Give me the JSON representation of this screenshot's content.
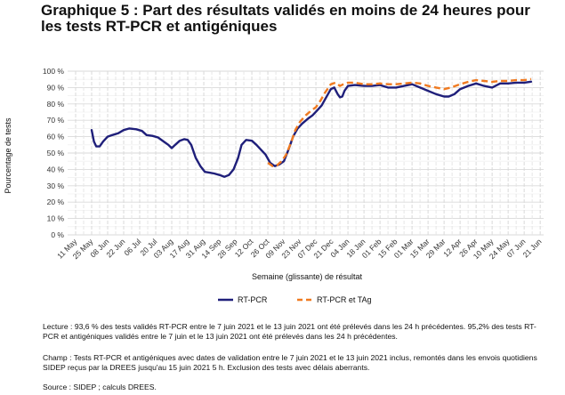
{
  "chart_data": {
    "type": "line",
    "title": "Graphique 5 : Part des résultats validés en moins de 24 heures pour les tests RT-PCR et antigéniques",
    "xlabel": "Semaine (glissante) de résultat",
    "ylabel": "Pourcentage de tests",
    "ylim": [
      0,
      100
    ],
    "y_ticks": [
      0,
      10,
      20,
      30,
      40,
      50,
      60,
      70,
      80,
      90,
      100
    ],
    "y_tick_labels": [
      "0 %",
      "10 %",
      "20 %",
      "30 %",
      "40 %",
      "50 %",
      "60 %",
      "70 %",
      "80 %",
      "90 %",
      "100 %"
    ],
    "x_ticks": [
      "2020-05-11",
      "2020-05-25",
      "2020-06-08",
      "2020-06-22",
      "2020-07-06",
      "2020-07-20",
      "2020-08-03",
      "2020-08-17",
      "2020-08-31",
      "2020-09-14",
      "2020-09-28",
      "2020-10-12",
      "2020-10-26",
      "2020-11-09",
      "2020-11-23",
      "2020-12-07",
      "2020-12-21",
      "2021-01-04",
      "2021-01-18",
      "2021-02-01",
      "2021-02-15",
      "2021-03-01",
      "2021-03-15",
      "2021-03-29",
      "2021-04-12",
      "2021-04-26",
      "2021-05-10",
      "2021-05-24",
      "2021-06-07",
      "2021-06-21"
    ],
    "x_tick_labels": [
      "11 May",
      "25 May",
      "08 Jun",
      "22 Jun",
      "06 Jul",
      "20 Jul",
      "03 Aug",
      "17 Aug",
      "31 Aug",
      "14 Sep",
      "28 Sep",
      "12 Oct",
      "26 Oct",
      "09 Nov",
      "23 Nov",
      "07 Dec",
      "21 Dec",
      "04 Jan",
      "18 Jan",
      "01 Feb",
      "15 Feb",
      "01 Mar",
      "15 Mar",
      "29 Mar",
      "12 Apr",
      "26 Apr",
      "10 May",
      "24 May",
      "07 Jun",
      "21 Jun"
    ],
    "xlim": [
      "2020-05-04",
      "2021-06-24"
    ],
    "grid": true,
    "legend_position": "bottom",
    "series": [
      {
        "name": "RT-PCR",
        "color": "#1f1f7a",
        "style": "solid",
        "points": [
          [
            "2020-05-25",
            64
          ],
          [
            "2020-05-27",
            57
          ],
          [
            "2020-05-29",
            54
          ],
          [
            "2020-06-01",
            54
          ],
          [
            "2020-06-04",
            57
          ],
          [
            "2020-06-08",
            60
          ],
          [
            "2020-06-12",
            61
          ],
          [
            "2020-06-17",
            62
          ],
          [
            "2020-06-22",
            64
          ],
          [
            "2020-06-27",
            65
          ],
          [
            "2020-07-03",
            64.5
          ],
          [
            "2020-07-08",
            63.5
          ],
          [
            "2020-07-12",
            61
          ],
          [
            "2020-07-17",
            60.5
          ],
          [
            "2020-07-22",
            59.5
          ],
          [
            "2020-07-27",
            57
          ],
          [
            "2020-07-31",
            55
          ],
          [
            "2020-08-03",
            53
          ],
          [
            "2020-08-06",
            55
          ],
          [
            "2020-08-10",
            57.5
          ],
          [
            "2020-08-14",
            58.5
          ],
          [
            "2020-08-17",
            58
          ],
          [
            "2020-08-20",
            55
          ],
          [
            "2020-08-24",
            47
          ],
          [
            "2020-08-28",
            42
          ],
          [
            "2020-09-01",
            38.5
          ],
          [
            "2020-09-05",
            38
          ],
          [
            "2020-09-09",
            37.5
          ],
          [
            "2020-09-14",
            36.5
          ],
          [
            "2020-09-18",
            35.5
          ],
          [
            "2020-09-22",
            36.5
          ],
          [
            "2020-09-26",
            40
          ],
          [
            "2020-09-30",
            47
          ],
          [
            "2020-10-03",
            55
          ],
          [
            "2020-10-07",
            58
          ],
          [
            "2020-10-12",
            57.5
          ],
          [
            "2020-10-16",
            55
          ],
          [
            "2020-10-20",
            52
          ],
          [
            "2020-10-24",
            49
          ],
          [
            "2020-10-28",
            44
          ],
          [
            "2020-11-01",
            42
          ],
          [
            "2020-11-05",
            43
          ],
          [
            "2020-11-09",
            45
          ],
          [
            "2020-11-13",
            52
          ],
          [
            "2020-11-17",
            60
          ],
          [
            "2020-11-21",
            65
          ],
          [
            "2020-11-25",
            68
          ],
          [
            "2020-11-30",
            71
          ],
          [
            "2020-12-04",
            73
          ],
          [
            "2020-12-08",
            76
          ],
          [
            "2020-12-12",
            79
          ],
          [
            "2020-12-16",
            84
          ],
          [
            "2020-12-20",
            89
          ],
          [
            "2020-12-23",
            90
          ],
          [
            "2020-12-26",
            86
          ],
          [
            "2020-12-28",
            84
          ],
          [
            "2020-12-30",
            84.5
          ],
          [
            "2021-01-01",
            88
          ],
          [
            "2021-01-04",
            91
          ],
          [
            "2021-01-10",
            91.5
          ],
          [
            "2021-01-18",
            91
          ],
          [
            "2021-01-25",
            91
          ],
          [
            "2021-02-01",
            91.5
          ],
          [
            "2021-02-08",
            90
          ],
          [
            "2021-02-15",
            90
          ],
          [
            "2021-02-22",
            91
          ],
          [
            "2021-03-01",
            92
          ],
          [
            "2021-03-08",
            90
          ],
          [
            "2021-03-15",
            88
          ],
          [
            "2021-03-22",
            86
          ],
          [
            "2021-03-29",
            84.5
          ],
          [
            "2021-04-02",
            84.5
          ],
          [
            "2021-04-07",
            86
          ],
          [
            "2021-04-12",
            89
          ],
          [
            "2021-04-19",
            91
          ],
          [
            "2021-04-26",
            92.5
          ],
          [
            "2021-05-03",
            91
          ],
          [
            "2021-05-10",
            90
          ],
          [
            "2021-05-17",
            92.5
          ],
          [
            "2021-05-24",
            92.5
          ],
          [
            "2021-05-31",
            93
          ],
          [
            "2021-06-07",
            93
          ],
          [
            "2021-06-13",
            93.6
          ]
        ]
      },
      {
        "name": "RT-PCR et TAg",
        "color": "#f07a20",
        "style": "dashed",
        "points": [
          [
            "2020-10-26",
            44
          ],
          [
            "2020-10-30",
            42
          ],
          [
            "2020-11-03",
            42.5
          ],
          [
            "2020-11-07",
            45
          ],
          [
            "2020-11-11",
            49
          ],
          [
            "2020-11-15",
            56
          ],
          [
            "2020-11-19",
            64
          ],
          [
            "2020-11-23",
            69
          ],
          [
            "2020-11-28",
            73
          ],
          [
            "2020-12-03",
            76
          ],
          [
            "2020-12-07",
            78
          ],
          [
            "2020-12-11",
            82
          ],
          [
            "2020-12-15",
            87
          ],
          [
            "2020-12-20",
            92
          ],
          [
            "2020-12-24",
            93
          ],
          [
            "2020-12-28",
            91
          ],
          [
            "2020-12-31",
            92
          ],
          [
            "2021-01-04",
            93
          ],
          [
            "2021-01-10",
            93
          ],
          [
            "2021-01-18",
            92
          ],
          [
            "2021-01-25",
            92
          ],
          [
            "2021-02-01",
            92.5
          ],
          [
            "2021-02-08",
            92
          ],
          [
            "2021-02-15",
            92
          ],
          [
            "2021-02-22",
            92.5
          ],
          [
            "2021-03-01",
            93
          ],
          [
            "2021-03-08",
            92.5
          ],
          [
            "2021-03-15",
            91
          ],
          [
            "2021-03-22",
            90
          ],
          [
            "2021-03-29",
            89
          ],
          [
            "2021-04-04",
            90
          ],
          [
            "2021-04-12",
            92
          ],
          [
            "2021-04-19",
            93.5
          ],
          [
            "2021-04-26",
            94.5
          ],
          [
            "2021-05-03",
            94
          ],
          [
            "2021-05-10",
            93.5
          ],
          [
            "2021-05-17",
            94
          ],
          [
            "2021-05-24",
            94
          ],
          [
            "2021-05-31",
            94.5
          ],
          [
            "2021-06-07",
            94.5
          ],
          [
            "2021-06-13",
            95.2
          ]
        ]
      }
    ]
  },
  "notes": {
    "lecture": "Lecture : 93,6 % des tests validés RT-PCR entre le 7 juin 2021 et le 13 juin 2021 ont été prélevés dans les 24 h précédentes. 95,2% des tests RT-PCR et antigéniques validés entre le 7 juin et le 13 juin 2021 ont été prélevés dans les 24 h précédentes.",
    "champ": "Champ : Tests RT-PCR et antigéniques avec dates de validation entre le 7 juin 2021 et le 13 juin 2021 inclus, remontés dans les envois quotidiens SIDEP reçus par la DREES jusqu'au 15 juin 2021 5 h. Exclusion des tests avec délais aberrants.",
    "source": "Source : SIDEP ; calculs DREES."
  }
}
